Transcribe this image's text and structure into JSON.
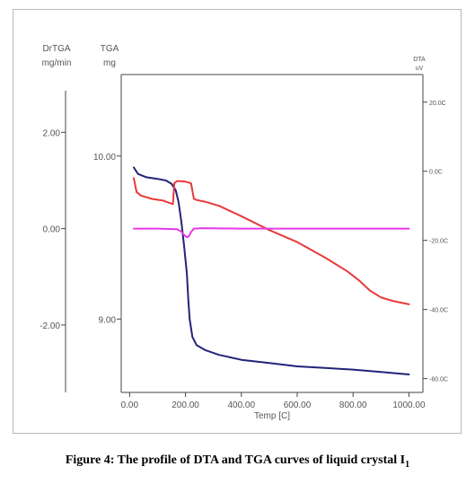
{
  "caption": {
    "text": "Figure 4: The profile of DTA and TGA curves of liquid crystal I",
    "subscript": "1"
  },
  "chart_data": {
    "type": "line",
    "title": "",
    "xlabel": "Temp [C]",
    "xlim": [
      -30,
      1050
    ],
    "x_ticks": [
      0,
      200,
      400,
      600,
      800,
      1000
    ],
    "x_tick_labels": [
      "0.00",
      "200.00",
      "400.00",
      "600.00",
      "800.00",
      "1000.00"
    ],
    "axes": {
      "drtga": {
        "label_line1": "DrTGA",
        "label_line2": "mg/min",
        "range": [
          -3.4,
          3.2
        ],
        "ticks": [
          2,
          0,
          -2
        ],
        "tick_labels": [
          "2.00",
          "0.00",
          "-2.00"
        ]
      },
      "tga": {
        "label_line1": "TGA",
        "label_line2": "mg",
        "range": [
          8.55,
          10.5
        ],
        "ticks": [
          10,
          9
        ],
        "tick_labels": [
          "10.00",
          "9.00"
        ]
      },
      "dta": {
        "label_line1": "DTA",
        "label_line2": "uV",
        "range": [
          -64,
          28
        ],
        "ticks": [
          20,
          0,
          -20,
          -40,
          -60
        ],
        "tick_labels": [
          "20.0C",
          "0.0C",
          "-20.0C",
          "-40.0C",
          "-60.0C"
        ]
      }
    },
    "series": [
      {
        "color": "#23237a",
        "axis": "tga",
        "x": [
          15,
          30,
          60,
          100,
          130,
          150,
          165,
          175,
          185,
          195,
          205,
          210,
          215,
          225,
          240,
          270,
          320,
          400,
          500,
          600,
          700,
          800,
          900,
          1000
        ],
        "y": [
          9.93,
          9.89,
          9.87,
          9.86,
          9.85,
          9.83,
          9.79,
          9.72,
          9.6,
          9.45,
          9.28,
          9.12,
          9.0,
          8.89,
          8.84,
          8.81,
          8.78,
          8.75,
          8.73,
          8.71,
          8.7,
          8.69,
          8.675,
          8.66
        ]
      },
      {
        "color": "#e83a3a",
        "axis": "dta",
        "x": [
          15,
          25,
          40,
          80,
          120,
          155,
          160,
          170,
          200,
          220,
          230,
          240,
          270,
          320,
          400,
          500,
          600,
          700,
          780,
          820,
          860,
          900,
          940,
          1000
        ],
        "y": [
          -2,
          -6,
          -7,
          -8,
          -8.5,
          -9.5,
          -3.5,
          -2.8,
          -3,
          -3.5,
          -8,
          -8.3,
          -8.8,
          -10,
          -13,
          -17,
          -20.5,
          -25,
          -29,
          -31.5,
          -34.5,
          -36.5,
          -37.5,
          -38.5
        ]
      },
      {
        "color": "#e639e6",
        "axis": "drtga",
        "x": [
          15,
          100,
          170,
          185,
          195,
          205,
          212,
          220,
          230,
          260,
          400,
          600,
          800,
          1000
        ],
        "y": [
          0.0,
          0.0,
          -0.01,
          -0.06,
          -0.13,
          -0.18,
          -0.16,
          -0.07,
          0.0,
          0.01,
          0.0,
          0.0,
          0.0,
          0.0
        ]
      }
    ],
    "grid": false,
    "legend": "none"
  }
}
